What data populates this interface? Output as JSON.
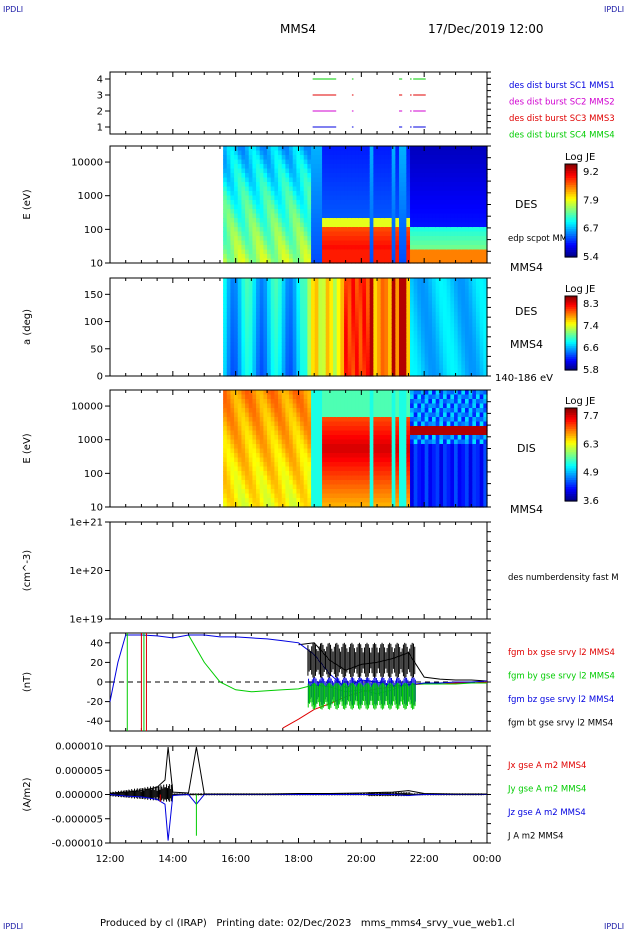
{
  "corner_label": "IPDLI",
  "header": {
    "spacecraft": "MMS4",
    "datetime": "17/Dec/2019 12:00"
  },
  "footer": {
    "produced_by": "Produced by cl (IRAP)",
    "printing_date": "Printing date: 02/Dec/2023",
    "file": "mms_mms4_srvy_vue_web1.cl"
  },
  "colors": {
    "red": "#e00000",
    "green": "#00cc00",
    "blue": "#0000e0",
    "magenta": "#d000d0",
    "black": "#000000"
  },
  "chart_data": [
    {
      "type": "line",
      "name": "burst_flags",
      "ylim": [
        1,
        4
      ],
      "y_ticks": [
        "4",
        "3",
        "2",
        "1"
      ],
      "legend": [
        {
          "label": "des dist burst SC1 MMS1",
          "color": "#0000e0"
        },
        {
          "label": "des dist burst SC2 MMS2",
          "color": "#d000d0"
        },
        {
          "label": "des dist burst SC3 MMS3",
          "color": "#e00000"
        },
        {
          "label": "des dist burst SC4 MMS4",
          "color": "#00cc00"
        }
      ]
    },
    {
      "type": "heatmap",
      "name": "des_energy_spectrogram",
      "ylabel": "E (eV)",
      "y_scale": "log",
      "ylim": [
        10,
        30000
      ],
      "y_ticks": [
        "10000",
        "1000",
        "100",
        "10"
      ],
      "label": "DES",
      "extra_label": "edp scpot MMS4",
      "bottom_label": "MMS4",
      "colorbar": {
        "title": "Log JE",
        "ticks": [
          "9.2",
          "7.9",
          "6.7",
          "5.4"
        ]
      }
    },
    {
      "type": "heatmap",
      "name": "des_pitch_angle",
      "ylabel": "a (deg)",
      "ylim": [
        0,
        180
      ],
      "y_ticks": [
        "150",
        "100",
        "50",
        "0"
      ],
      "label": "DES",
      "mid_label": "MMS4",
      "bottom_label": "140-186 eV",
      "colorbar": {
        "title": "Log JE",
        "ticks": [
          "8.3",
          "7.4",
          "6.6",
          "5.8"
        ]
      }
    },
    {
      "type": "heatmap",
      "name": "dis_energy_spectrogram",
      "ylabel": "E (eV)",
      "y_scale": "log",
      "ylim": [
        10,
        30000
      ],
      "y_ticks": [
        "10000",
        "1000",
        "100",
        "10"
      ],
      "label": "DIS",
      "bottom_label": "MMS4",
      "colorbar": {
        "title": "Log JE",
        "ticks": [
          "7.7",
          "6.3",
          "4.9",
          "3.6"
        ]
      }
    },
    {
      "type": "line",
      "name": "density",
      "ylabel": "(cm^-3)",
      "y_ticks": [
        "1e+21",
        "1e+20",
        "1e+19"
      ],
      "legend": [
        {
          "label": "des numberdensity fast M",
          "color": "#000000"
        }
      ]
    },
    {
      "type": "line",
      "name": "magnetic_field",
      "ylabel": "(nT)",
      "ylim": [
        -50,
        50
      ],
      "y_ticks": [
        "40",
        "20",
        "0",
        "-20",
        "-40"
      ],
      "legend": [
        {
          "label": "fgm bx gse srvy l2 MMS4",
          "color": "#e00000"
        },
        {
          "label": "fgm by gse srvy l2 MMS4",
          "color": "#00cc00"
        },
        {
          "label": "fgm bz gse srvy l2 MMS4",
          "color": "#0000e0"
        },
        {
          "label": "fgm bt gse srvy l2 MMS4",
          "color": "#000000"
        }
      ],
      "x_hours": [
        12,
        12.25,
        12.5,
        13,
        13.5,
        14,
        14.5,
        15,
        15.5,
        16,
        16.5,
        17,
        17.5,
        18,
        18.5,
        19,
        19.5,
        20,
        20.5,
        21,
        21.5,
        22,
        22.5,
        23,
        23.5,
        24
      ],
      "series": [
        {
          "name": "bx",
          "values": [
            null,
            null,
            null,
            null,
            null,
            null,
            null,
            null,
            null,
            null,
            null,
            null,
            -47,
            -38,
            -28,
            -22,
            -15,
            -10,
            -7,
            -5,
            -3,
            -2,
            -2,
            -1,
            -1,
            0
          ]
        },
        {
          "name": "by",
          "values": [
            null,
            null,
            null,
            null,
            null,
            null,
            48,
            20,
            0,
            -8,
            -10,
            -9,
            -8,
            -7,
            -3,
            -5,
            -10,
            -8,
            -12,
            -8,
            -2,
            -2,
            -2,
            -2,
            -1,
            -1
          ]
        },
        {
          "name": "bz",
          "values": [
            -20,
            20,
            48,
            48,
            47,
            45,
            48,
            48,
            46,
            46,
            45,
            44,
            42,
            40,
            28,
            8,
            -6,
            2,
            0,
            -4,
            -3,
            -1,
            -1,
            0,
            0,
            1
          ]
        },
        {
          "name": "bt",
          "values": [
            null,
            null,
            null,
            null,
            null,
            null,
            null,
            null,
            null,
            null,
            null,
            null,
            null,
            38,
            40,
            22,
            12,
            18,
            20,
            24,
            30,
            5,
            3,
            2,
            2,
            1
          ]
        }
      ]
    },
    {
      "type": "line",
      "name": "current_density",
      "ylabel": "(A/m2)",
      "ylim": [
        -1e-05,
        1e-05
      ],
      "y_ticks": [
        "0.000010",
        "0.000005",
        "0.000000",
        "-0.000005",
        "-0.000010"
      ],
      "legend": [
        {
          "label": "Jx gse A m2 MMS4",
          "color": "#e00000"
        },
        {
          "label": "Jy gse A m2 MMS4",
          "color": "#00cc00"
        },
        {
          "label": "Jz gse A m2 MMS4",
          "color": "#0000e0"
        },
        {
          "label": "J A m2 MMS4",
          "color": "#000000"
        }
      ],
      "x_hours": [
        12,
        12.5,
        13,
        13.5,
        13.75,
        13.85,
        14,
        14.5,
        14.75,
        15,
        16,
        17,
        18,
        19,
        20,
        21,
        21.5,
        22,
        23,
        24
      ],
      "series": [
        {
          "name": "J",
          "values": [
            2e-07,
            5e-07,
            8e-07,
            1.5e-06,
            3e-06,
            9.8e-06,
            5e-07,
            3e-07,
            9.8e-06,
            1e-07,
            1e-07,
            1e-07,
            2e-07,
            2e-07,
            3e-07,
            5e-07,
            8e-07,
            2e-07,
            1e-07,
            1e-07
          ]
        },
        {
          "name": "Jz",
          "values": [
            0,
            -3e-07,
            -5e-07,
            -1e-06,
            -2e-06,
            -9.5e-06,
            -2e-07,
            0,
            -2e-06,
            0,
            0,
            0,
            0,
            0,
            0,
            0,
            -2e-07,
            0,
            0,
            0
          ]
        }
      ],
      "x_ticks": [
        "12:00",
        "14:00",
        "16:00",
        "18:00",
        "20:00",
        "22:00",
        "00:00"
      ]
    }
  ]
}
